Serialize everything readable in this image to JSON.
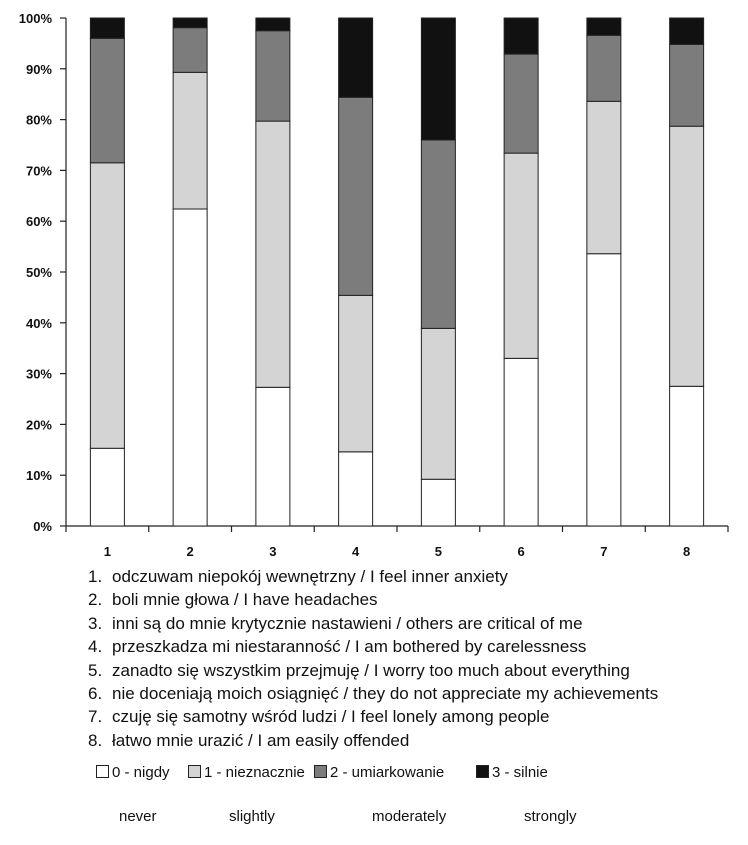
{
  "chart_data": {
    "type": "bar",
    "stacked": true,
    "categories": [
      "1",
      "2",
      "3",
      "4",
      "5",
      "6",
      "7",
      "8"
    ],
    "yticks": [
      "0%",
      "10%",
      "20%",
      "30%",
      "40%",
      "50%",
      "60%",
      "70%",
      "80%",
      "90%",
      "100%"
    ],
    "ylim": [
      0,
      100
    ],
    "grid": false,
    "legend_position": "bottom",
    "series": [
      {
        "name": "0 - nigdy",
        "english": "never",
        "color": "#ffffff",
        "values": [
          15.3,
          62.4,
          27.3,
          14.6,
          9.2,
          33.0,
          53.6,
          27.5
        ]
      },
      {
        "name": "1 - nieznacznie",
        "english": "slightly",
        "color": "#d4d4d4",
        "values": [
          56.2,
          26.9,
          52.4,
          30.8,
          29.7,
          40.4,
          30.0,
          51.2
        ]
      },
      {
        "name": "2 - umiarkowanie",
        "english": "moderately",
        "color": "#7c7c7c",
        "values": [
          24.5,
          8.8,
          17.8,
          39.0,
          37.1,
          19.5,
          13.0,
          16.1
        ]
      },
      {
        "name": "3 - silnie",
        "english": "strongly",
        "color": "#111111",
        "values": [
          4.0,
          1.9,
          2.5,
          15.6,
          24.0,
          7.1,
          3.4,
          5.2
        ]
      }
    ]
  },
  "descriptions": [
    {
      "num": "1.",
      "text": "odczuwam niepokój wewnętrzny / I feel inner anxiety"
    },
    {
      "num": "2.",
      "text": "boli mnie głowa / I have headaches"
    },
    {
      "num": "3.",
      "text": "inni są do mnie krytycznie nastawieni / others are critical of me"
    },
    {
      "num": "4.",
      "text": "przeszkadza mi niestaranność / I am bothered by carelessness"
    },
    {
      "num": "5.",
      "text": "zanadto się wszystkim przejmuję / I worry too much about everything"
    },
    {
      "num": "6.",
      "text": "nie doceniają moich osiągnięć / they do not appreciate my achievements"
    },
    {
      "num": "7.",
      "text": "czuję się samotny wśród ludzi / I feel lonely among people"
    },
    {
      "num": "8.",
      "text": "łatwo mnie urazić / I am easily offended"
    }
  ]
}
